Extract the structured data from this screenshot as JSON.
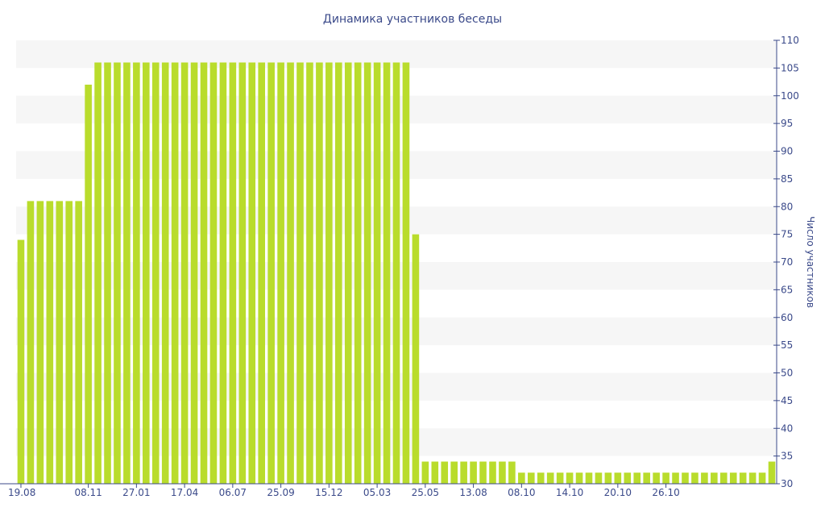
{
  "chart_data": {
    "type": "bar",
    "title": "Динамика участников беседы",
    "xlabel": "",
    "ylabel": "Число участников",
    "ylim": [
      30,
      110
    ],
    "y_ticks": [
      30,
      35,
      40,
      45,
      50,
      55,
      60,
      65,
      70,
      75,
      80,
      85,
      90,
      95,
      100,
      105,
      110
    ],
    "y_axis_side": "right",
    "grid": "alternating horizontal bands",
    "legend": "none",
    "x_tick_labels": [
      "19.08",
      "08.11",
      "27.01",
      "17.04",
      "06.07",
      "25.09",
      "15.12",
      "05.03",
      "25.05",
      "13.08",
      "08.10",
      "14.10",
      "20.10",
      "26.10"
    ],
    "x_tick_label_bar_index": [
      0,
      7,
      12,
      17,
      22,
      27,
      32,
      37,
      42,
      47,
      52,
      57,
      62,
      67
    ],
    "values": [
      74,
      81,
      81,
      81,
      81,
      81,
      81,
      102,
      106,
      106,
      106,
      106,
      106,
      106,
      106,
      106,
      106,
      106,
      106,
      106,
      106,
      106,
      106,
      106,
      106,
      106,
      106,
      106,
      106,
      106,
      106,
      106,
      106,
      106,
      106,
      106,
      106,
      106,
      106,
      106,
      106,
      75,
      34,
      34,
      34,
      34,
      34,
      34,
      34,
      34,
      34,
      34,
      32,
      32,
      32,
      32,
      32,
      32,
      32,
      32,
      32,
      32,
      32,
      32,
      32,
      32,
      32,
      32,
      32,
      32,
      32,
      32,
      32,
      32,
      32,
      32,
      32,
      32,
      34
    ],
    "colors": {
      "bar": "#b9dc2c",
      "band": "#f6f6f6",
      "axis": "#3b4a8a",
      "text": "#3b4a8a"
    }
  }
}
